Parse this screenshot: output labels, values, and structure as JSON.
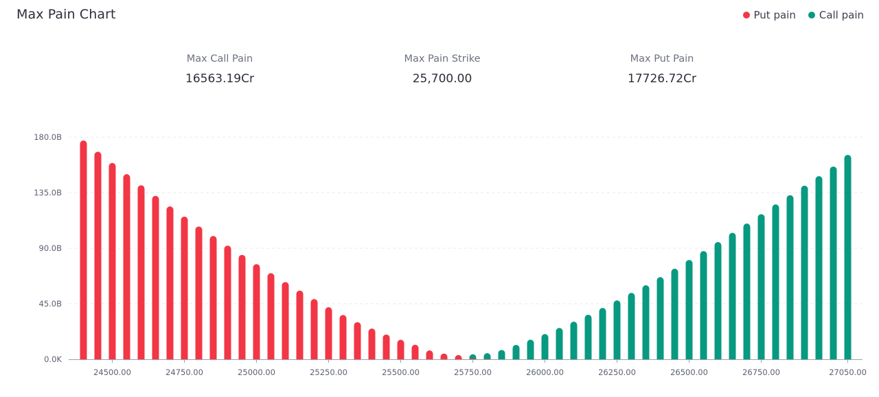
{
  "title": "Max Pain Chart",
  "legend": [
    {
      "label": "Put pain",
      "color": "#f23645"
    },
    {
      "label": "Call pain",
      "color": "#089981"
    }
  ],
  "stats": {
    "max_call_pain": {
      "label": "Max Call Pain",
      "value": "16563.19Cr"
    },
    "max_pain_strike": {
      "label": "Max Pain Strike",
      "value": "25,700.00"
    },
    "max_put_pain": {
      "label": "Max Put Pain",
      "value": "17726.72Cr"
    }
  },
  "chart_data": {
    "type": "bar",
    "title": "",
    "xlabel": "",
    "ylabel": "",
    "ylim": [
      0,
      180
    ],
    "y_unit": "B",
    "grid": true,
    "stacked": true,
    "y_ticks": [
      "0.0K",
      "45.0B",
      "90.0B",
      "135.0B",
      "180.0B"
    ],
    "x_ticks": [
      "24500.00",
      "24750.00",
      "25000.00",
      "25250.00",
      "25500.00",
      "25750.00",
      "26000.00",
      "26250.00",
      "26500.00",
      "26750.00",
      "27050.00"
    ],
    "categories": [
      24400,
      24450,
      24500,
      24550,
      24600,
      24650,
      24700,
      24750,
      24800,
      24850,
      24900,
      24950,
      25000,
      25050,
      25100,
      25150,
      25200,
      25250,
      25300,
      25350,
      25400,
      25450,
      25500,
      25550,
      25600,
      25650,
      25700,
      25750,
      25800,
      25850,
      25900,
      25950,
      26000,
      26050,
      26100,
      26150,
      26200,
      26250,
      26300,
      26350,
      26400,
      26450,
      26500,
      26550,
      26600,
      26650,
      26700,
      26750,
      26800,
      26850,
      26900,
      26950,
      27000,
      27050
    ],
    "series": [
      {
        "name": "Put pain",
        "color": "#f23645",
        "values": [
          177.3,
          168.2,
          159.1,
          150.0,
          141.0,
          132.4,
          123.9,
          115.6,
          107.6,
          99.9,
          92.1,
          84.6,
          77.1,
          69.8,
          62.6,
          55.7,
          48.8,
          42.2,
          35.9,
          30.1,
          24.9,
          20.1,
          15.8,
          11.8,
          7.2,
          3.8,
          1.4,
          0.5,
          0.2,
          0,
          0,
          0,
          0,
          0,
          0,
          0,
          0,
          0,
          0,
          0,
          0,
          0,
          0,
          0,
          0,
          0,
          0,
          0,
          0,
          0,
          0,
          0,
          0,
          0
        ]
      },
      {
        "name": "Call pain",
        "color": "#089981",
        "values": [
          0,
          0,
          0,
          0,
          0,
          0,
          0,
          0,
          0,
          0,
          0,
          0,
          0,
          0,
          0,
          0,
          0,
          0,
          0,
          0,
          0,
          0,
          0,
          0,
          0,
          0,
          0,
          1.6,
          4.0,
          7.6,
          11.7,
          15.9,
          20.5,
          25.4,
          30.5,
          36.1,
          41.6,
          47.7,
          53.8,
          60.0,
          66.6,
          73.4,
          80.5,
          87.7,
          95.0,
          102.5,
          110.0,
          117.6,
          125.5,
          133.0,
          140.7,
          148.4,
          156.2,
          165.6
        ]
      }
    ]
  }
}
